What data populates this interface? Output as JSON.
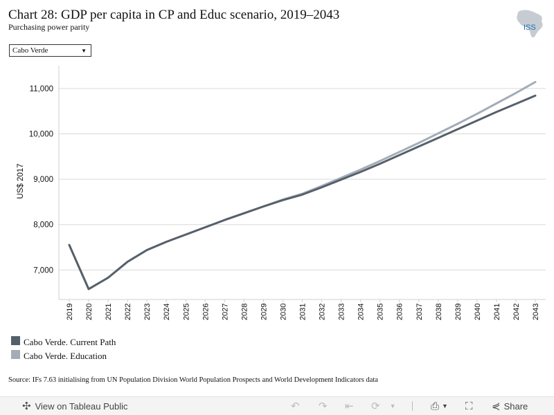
{
  "header": {
    "title": "Chart 28: GDP per capita in CP and Educ scenario, 2019–2043",
    "subtitle": "Purchasing power parity",
    "logo_text": "ISS"
  },
  "filter": {
    "selected": "Cabo Verde"
  },
  "legend": {
    "items": [
      {
        "label": "Cabo Verde. Current Path",
        "color": "#56606b"
      },
      {
        "label": "Cabo Verde. Education",
        "color": "#a3acb7"
      }
    ]
  },
  "source": "Source: IFs 7.63 initialising from UN Population Division World Population Prospects and World Development Indicators data",
  "toolbar": {
    "view_label": "View on Tableau Public",
    "share_label": "Share",
    "icons": [
      "tableau-icon",
      "undo-icon",
      "redo-icon",
      "revert-icon",
      "refresh-icon",
      "download-icon",
      "fullscreen-icon",
      "share-icon"
    ]
  },
  "chart_data": {
    "type": "line",
    "title": "Chart 28: GDP per capita in CP and Educ scenario, 2019–2043",
    "ylabel": "US$ 2017",
    "xlabel": "",
    "ylim": [
      6350,
      11500
    ],
    "yticks": [
      7000,
      8000,
      9000,
      10000,
      11000
    ],
    "ytick_labels": [
      "7,000",
      "8,000",
      "9,000",
      "10,000",
      "11,000"
    ],
    "x": [
      "2019",
      "2020",
      "2021",
      "2022",
      "2023",
      "2024",
      "2025",
      "2026",
      "2027",
      "2028",
      "2029",
      "2030",
      "2031",
      "2032",
      "2033",
      "2034",
      "2035",
      "2036",
      "2037",
      "2038",
      "2039",
      "2040",
      "2041",
      "2042",
      "2043"
    ],
    "grid": true,
    "series": [
      {
        "name": "Cabo Verde. Current Path",
        "color": "#56606b",
        "values": [
          7550,
          6580,
          6830,
          7180,
          7440,
          7620,
          7780,
          7940,
          8100,
          8250,
          8400,
          8540,
          8660,
          8820,
          8990,
          9160,
          9340,
          9530,
          9720,
          9910,
          10100,
          10290,
          10480,
          10660,
          10840
        ]
      },
      {
        "name": "Cabo Verde. Education",
        "color": "#a3acb7",
        "values": [
          7550,
          6580,
          6830,
          7180,
          7440,
          7620,
          7780,
          7940,
          8100,
          8250,
          8400,
          8550,
          8680,
          8850,
          9030,
          9210,
          9400,
          9600,
          9800,
          10010,
          10220,
          10440,
          10670,
          10900,
          11140
        ]
      }
    ]
  }
}
